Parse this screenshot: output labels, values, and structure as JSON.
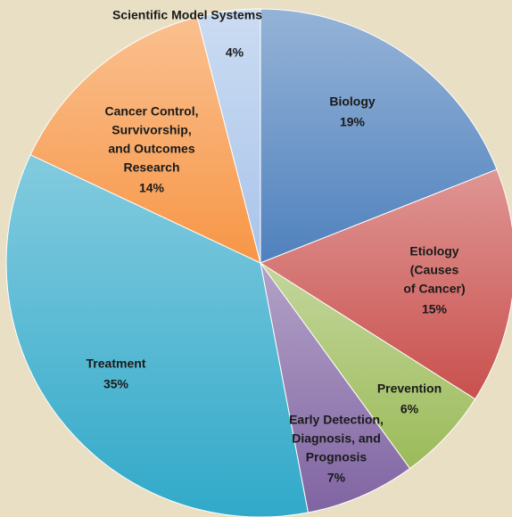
{
  "chart_data": {
    "type": "pie",
    "categories": [
      [
        "Biology"
      ],
      [
        "Etiology",
        "(Causes",
        "of Cancer)"
      ],
      [
        "Prevention"
      ],
      [
        "Early Detection,",
        "Diagnosis, and",
        "Prognosis"
      ],
      [
        "Treatment"
      ],
      [
        "Cancer Control,",
        "Survivorship,",
        "and Outcomes",
        "Research"
      ],
      [
        "Scientific Model Systems"
      ]
    ],
    "values": [
      19,
      15,
      6,
      7,
      35,
      14,
      4
    ],
    "value_labels": [
      "19%",
      "15%",
      "6%",
      "7%",
      "35%",
      "14%",
      "4%"
    ],
    "colors": [
      "#4f81bd",
      "#c9504d",
      "#9bbb59",
      "#8064a2",
      "#31a9c9",
      "#f79646",
      "#a9c4ea"
    ]
  }
}
